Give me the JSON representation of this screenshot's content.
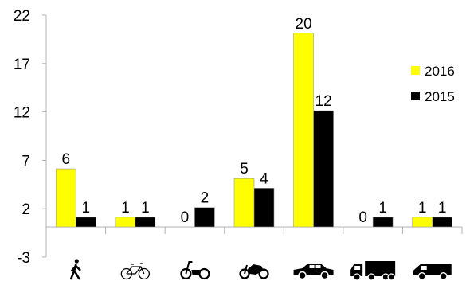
{
  "chart_data": {
    "type": "bar",
    "title": "",
    "xlabel": "",
    "ylabel": "",
    "ylim": [
      -3,
      22
    ],
    "yticks": [
      -3,
      2,
      7,
      12,
      17,
      22
    ],
    "categories": [
      "pedestrian",
      "bicycle",
      "moped",
      "motorcycle",
      "car",
      "truck",
      "van"
    ],
    "category_icons": [
      "pedestrian-icon",
      "bicycle-icon",
      "moped-icon",
      "motorcycle-icon",
      "car-icon",
      "truck-icon",
      "van-icon"
    ],
    "series": [
      {
        "name": "2016",
        "color": "#ffff00",
        "values": [
          6,
          1,
          0,
          5,
          20,
          0,
          1
        ]
      },
      {
        "name": "2015",
        "color": "#000000",
        "values": [
          1,
          1,
          2,
          4,
          12,
          1,
          1
        ]
      }
    ],
    "grid": false,
    "legend_position": "right"
  }
}
